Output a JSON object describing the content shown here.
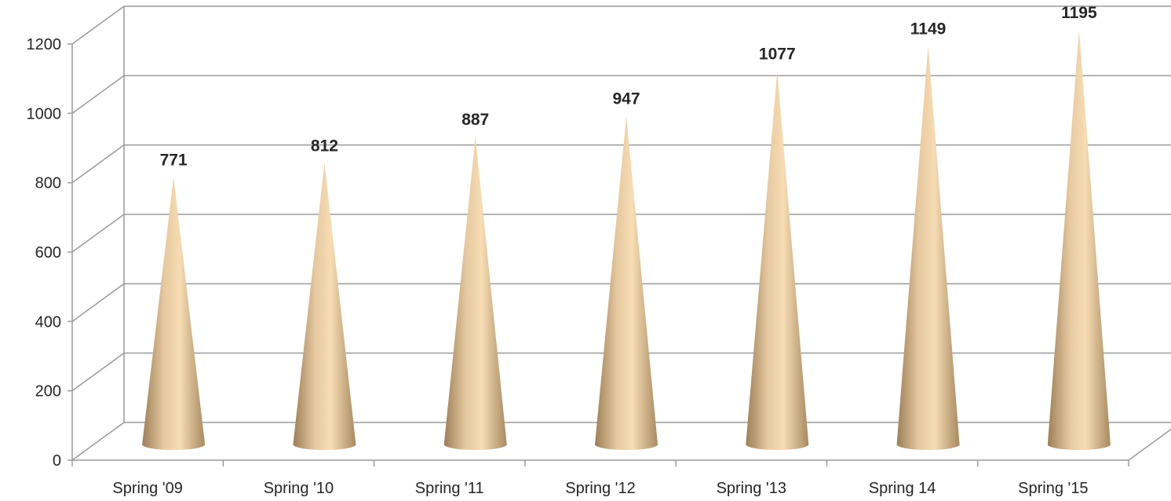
{
  "chart_data": {
    "type": "bar",
    "bar_shape": "cone",
    "categories": [
      "Spring '09",
      "Spring '10",
      "Spring '11",
      "Spring '12",
      "Spring '13",
      "Spring 14",
      "Spring '15"
    ],
    "values": [
      771,
      812,
      887,
      947,
      1077,
      1149,
      1195
    ],
    "data_labels": [
      "771",
      "812",
      "887",
      "947",
      "1077",
      "1149",
      "1195"
    ],
    "ylim": [
      0,
      1200
    ],
    "yticks": [
      0,
      200,
      400,
      600,
      800,
      1000,
      1200
    ],
    "ytick_labels": [
      "0",
      "200",
      "400",
      "600",
      "800",
      "1000",
      "1200"
    ],
    "grid": true,
    "legend": "none",
    "colors": {
      "cone_light": "#f7dcb4",
      "cone_mid": "#d9b98c",
      "cone_dark": "#9c7f58",
      "gridline": "#9a9a9a"
    }
  }
}
